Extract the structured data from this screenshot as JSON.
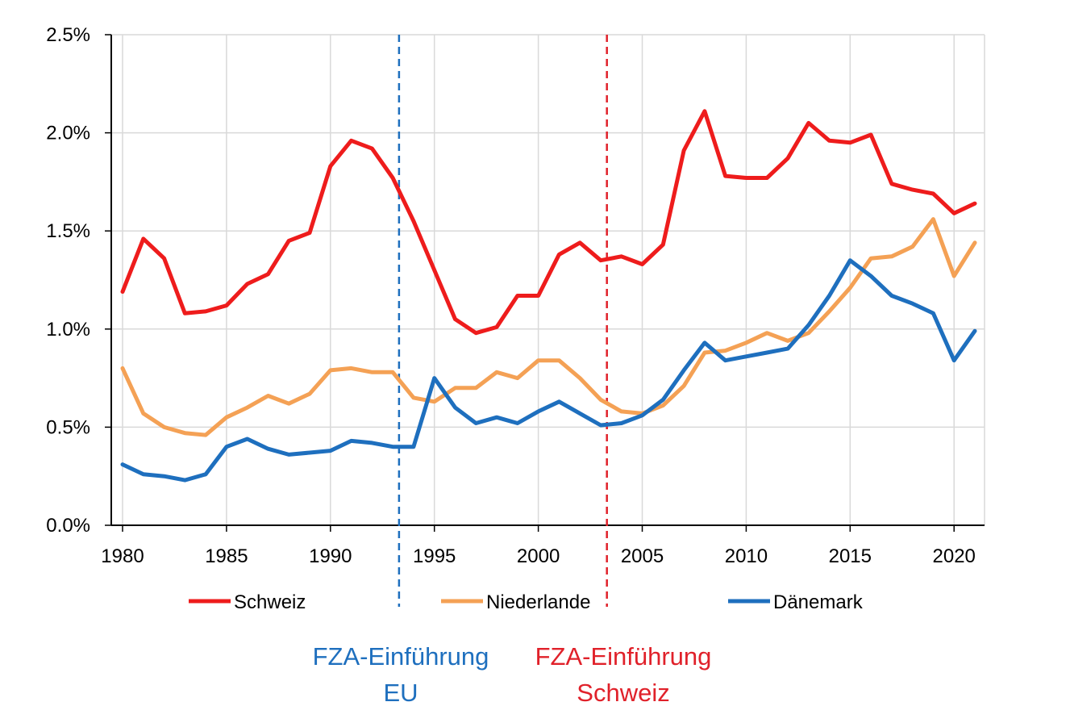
{
  "chart_data": {
    "type": "line",
    "title": "",
    "xlabel": "",
    "ylabel": "",
    "xlim": [
      1980,
      2021
    ],
    "ylim": [
      0,
      2.5
    ],
    "x_ticks": [
      "1980",
      "1985",
      "1990",
      "1995",
      "2000",
      "2005",
      "2010",
      "2015",
      "2020"
    ],
    "x_tick_values": [
      1980,
      1985,
      1990,
      1995,
      2000,
      2005,
      2010,
      2015,
      2020
    ],
    "y_ticks": [
      "0.0%",
      "0.5%",
      "1.0%",
      "1.5%",
      "2.0%",
      "2.5%"
    ],
    "y_tick_values": [
      0,
      0.5,
      1.0,
      1.5,
      2.0,
      2.5
    ],
    "grid": true,
    "legend_placement": "bottom",
    "x": [
      1980,
      1981,
      1982,
      1983,
      1984,
      1985,
      1986,
      1987,
      1988,
      1989,
      1990,
      1991,
      1992,
      1993,
      1994,
      1995,
      1996,
      1997,
      1998,
      1999,
      2000,
      2001,
      2002,
      2003,
      2004,
      2005,
      2006,
      2007,
      2008,
      2009,
      2010,
      2011,
      2012,
      2013,
      2014,
      2015,
      2016,
      2017,
      2018,
      2019,
      2020,
      2021
    ],
    "series": [
      {
        "name": "Schweiz",
        "color": "#ee1c1c",
        "values": [
          1.19,
          1.46,
          1.36,
          1.08,
          1.09,
          1.12,
          1.23,
          1.28,
          1.45,
          1.49,
          1.83,
          1.96,
          1.92,
          1.77,
          1.55,
          1.3,
          1.05,
          0.98,
          1.01,
          1.17,
          1.17,
          1.38,
          1.44,
          1.35,
          1.37,
          1.33,
          1.43,
          1.91,
          2.11,
          1.78,
          1.77,
          1.77,
          1.87,
          2.05,
          1.96,
          1.95,
          1.99,
          1.74,
          1.71,
          1.69,
          1.59,
          1.64
        ]
      },
      {
        "name": "Niederlande",
        "color": "#f4a155",
        "values": [
          0.8,
          0.57,
          0.5,
          0.47,
          0.46,
          0.55,
          0.6,
          0.66,
          0.62,
          0.67,
          0.79,
          0.8,
          0.78,
          0.78,
          0.65,
          0.63,
          0.7,
          0.7,
          0.78,
          0.75,
          0.84,
          0.84,
          0.75,
          0.64,
          0.58,
          0.57,
          0.61,
          0.71,
          0.88,
          0.89,
          0.93,
          0.98,
          0.94,
          0.98,
          1.09,
          1.21,
          1.36,
          1.37,
          1.42,
          1.56,
          1.27,
          1.44
        ]
      },
      {
        "name": "Dänemark",
        "color": "#1e6fbe",
        "values": [
          0.31,
          0.26,
          0.25,
          0.23,
          0.26,
          0.4,
          0.44,
          0.39,
          0.36,
          0.37,
          0.38,
          0.43,
          0.42,
          0.4,
          0.4,
          0.75,
          0.6,
          0.52,
          0.55,
          0.52,
          0.58,
          0.63,
          0.57,
          0.51,
          0.52,
          0.56,
          0.64,
          0.79,
          0.93,
          0.84,
          0.86,
          0.88,
          0.9,
          1.02,
          1.17,
          1.35,
          1.27,
          1.17,
          1.13,
          1.08,
          0.84,
          0.99
        ]
      }
    ],
    "annotations": [
      {
        "x": 1993.3,
        "color": "#1e6fbe",
        "line1": "FZA-Einführung",
        "line2": "EU"
      },
      {
        "x": 2003.3,
        "color": "#e0212a",
        "line1": "FZA-Einführung",
        "line2": "Schweiz"
      }
    ]
  }
}
